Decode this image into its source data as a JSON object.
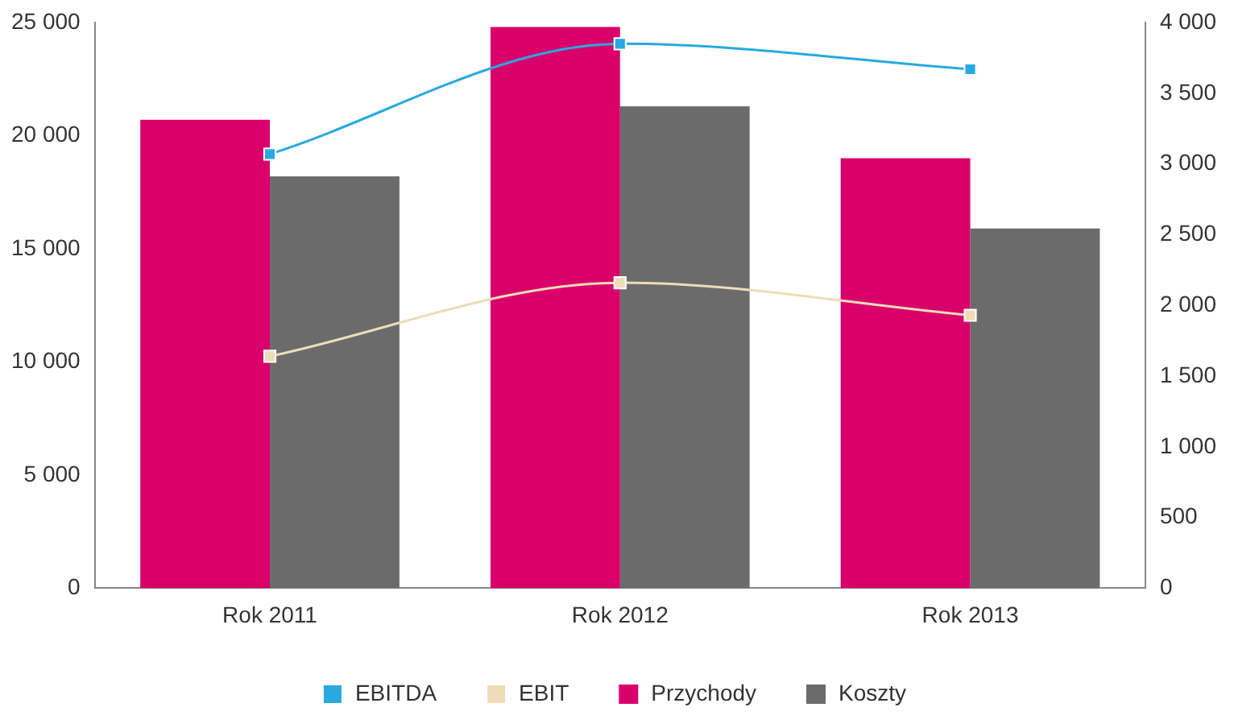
{
  "chart_data": {
    "type": "bar",
    "categories": [
      "Rok 2011",
      "Rok 2012",
      "Rok 2013"
    ],
    "series": [
      {
        "name": "Przychody",
        "color": "#d9006c",
        "values": [
          20700,
          24800,
          19000
        ]
      },
      {
        "name": "Koszty",
        "color": "#6b6b6b",
        "values": [
          18200,
          21300,
          15900
        ]
      },
      {
        "name": "EBITDA",
        "type": "line",
        "axis": "y2",
        "color": "#29a9e0",
        "values": [
          3070,
          3850,
          3670
        ]
      },
      {
        "name": "EBIT",
        "type": "line",
        "axis": "y2",
        "color": "#eedcb8",
        "values": [
          1640,
          2160,
          1930
        ]
      }
    ],
    "ylim": [
      0,
      25000
    ],
    "yticks": [
      0,
      {
        "value": 5000,
        "label": "5 000"
      },
      {
        "value": 10000,
        "label": "10 000"
      },
      {
        "value": 15000,
        "label": "15 000"
      },
      {
        "value": 20000,
        "label": "20 000"
      },
      {
        "value": 25000,
        "label": "25 000"
      }
    ],
    "y2lim": [
      0,
      4000
    ],
    "y2ticks": [
      0,
      500,
      {
        "value": 1000,
        "label": "1 000"
      },
      {
        "value": 1500,
        "label": "1 500"
      },
      {
        "value": 2000,
        "label": "2 000"
      },
      {
        "value": 2500,
        "label": "2 500"
      },
      {
        "value": 3000,
        "label": "3 000"
      },
      {
        "value": 3500,
        "label": "3 500"
      },
      {
        "value": 4000,
        "label": "4 000"
      }
    ],
    "grid": false,
    "legend": "bottom",
    "marker": "square",
    "line_style": "solid"
  }
}
